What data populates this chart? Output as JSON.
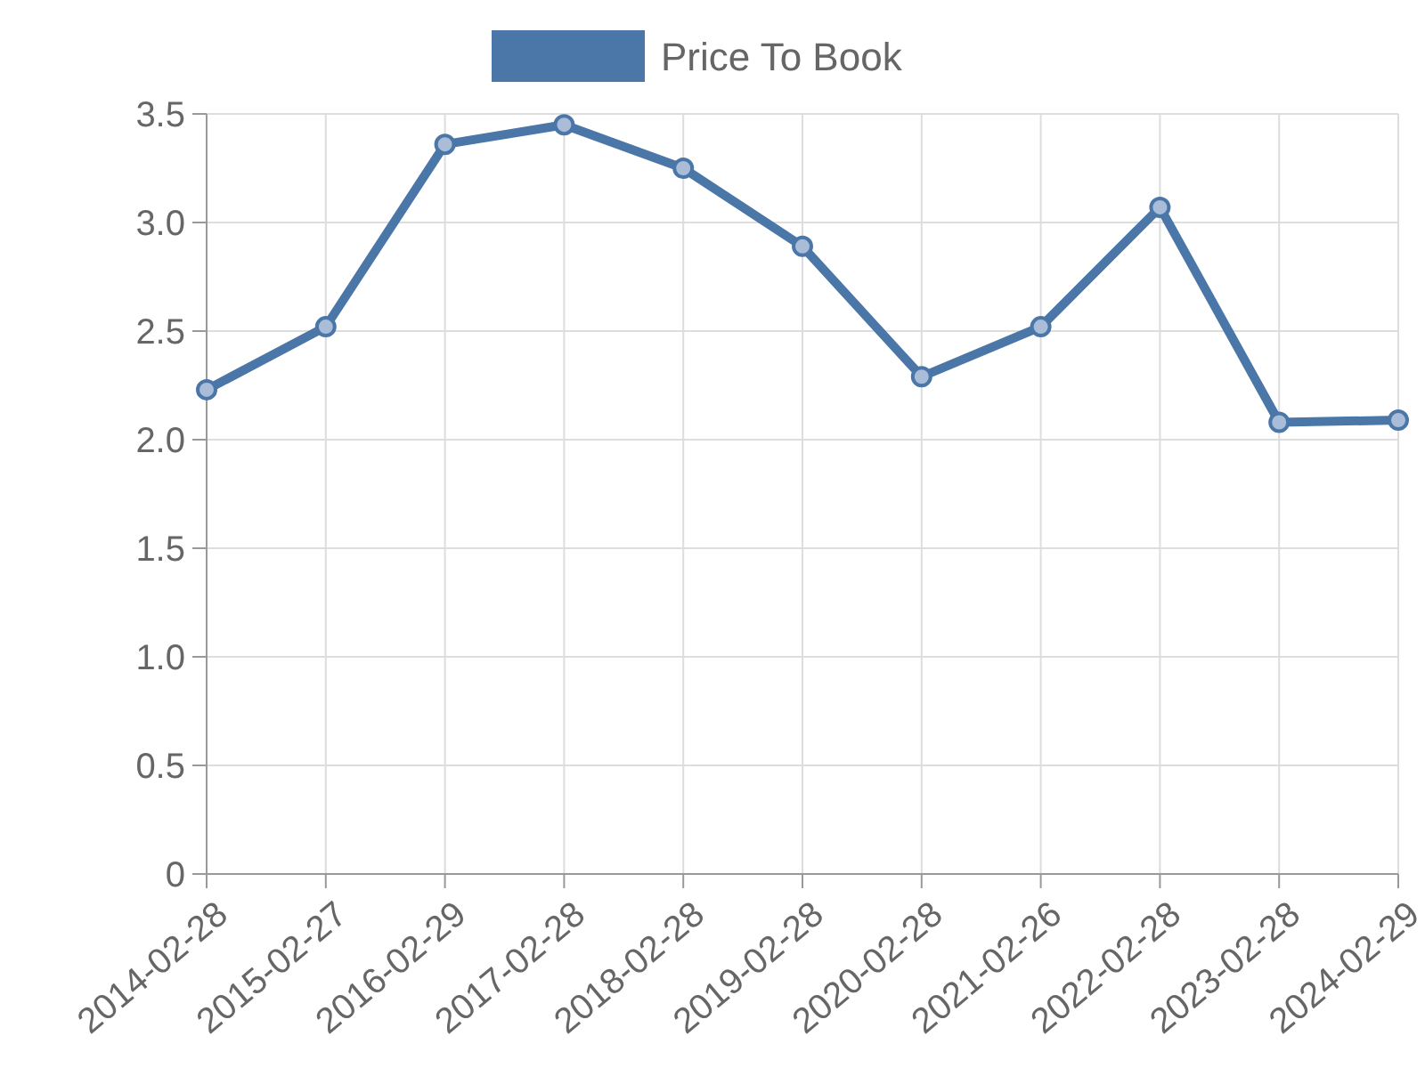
{
  "chart_data": {
    "type": "line",
    "categories": [
      "2014-02-28",
      "2015-02-27",
      "2016-02-29",
      "2017-02-28",
      "2018-02-28",
      "2019-02-28",
      "2020-02-28",
      "2021-02-26",
      "2022-02-28",
      "2023-02-28",
      "2024-02-29"
    ],
    "series": [
      {
        "name": "Price To Book",
        "color": "#4a76a8",
        "values": [
          2.23,
          2.52,
          3.36,
          3.45,
          3.25,
          2.89,
          2.29,
          2.52,
          3.07,
          2.08,
          2.09
        ]
      }
    ],
    "ylim": [
      0,
      3.5
    ],
    "yticks": [
      0,
      {
        "value": 0.5,
        "label": "0.5"
      },
      {
        "value": 1,
        "label": "1.0"
      },
      {
        "value": 1.5,
        "label": "1.5"
      },
      {
        "value": 2,
        "label": "2.0"
      },
      {
        "value": 2.5,
        "label": "2.5"
      },
      {
        "value": 3,
        "label": "3.0"
      },
      {
        "value": 3.5,
        "label": "3.5"
      }
    ],
    "grid": true,
    "legend": "top",
    "marker": "circle",
    "line_style": "solid"
  }
}
